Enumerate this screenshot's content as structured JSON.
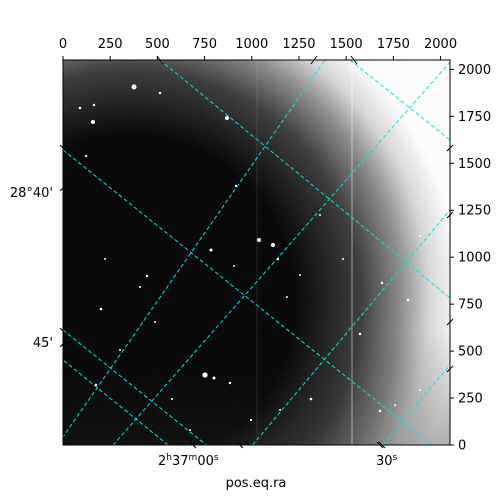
{
  "chart_data": {
    "type": "heatmap",
    "title": "",
    "xlabel": "pos.eq.ra",
    "ylabel": "",
    "colormap": "gray",
    "pixel_axes": {
      "x_range": [
        0,
        2050
      ],
      "y_range": [
        0,
        2050
      ],
      "top_ticks": [
        0,
        250,
        500,
        750,
        1000,
        1250,
        1500,
        1750,
        2000
      ],
      "right_ticks": [
        0,
        250,
        500,
        750,
        1000,
        1250,
        1500,
        1750,
        2000
      ]
    },
    "world_ticks": {
      "ra_ticks": [
        {
          "label": "2h37m00s",
          "main": "2",
          "sup1": "h",
          "mid": "37",
          "sup2": "m",
          "end": "00",
          "sup3": "s"
        },
        {
          "label": "30s",
          "main": "30",
          "sup": "s"
        }
      ],
      "dec_ticks": [
        {
          "label": "28°40'"
        },
        {
          "label": "45'"
        }
      ]
    },
    "grid": true,
    "grid_color": "#00e5e5",
    "grid_style": "dashed"
  }
}
